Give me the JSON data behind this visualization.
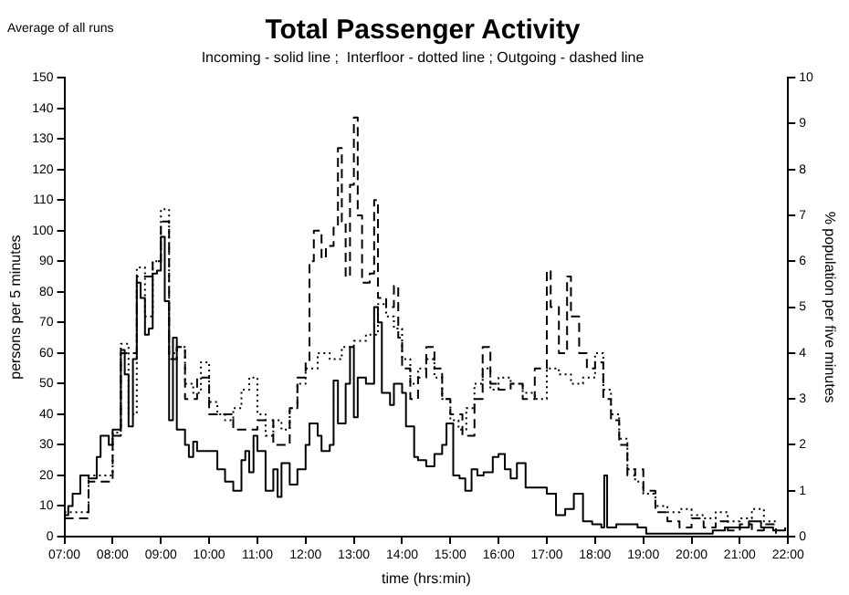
{
  "chart_data": {
    "type": "step",
    "title": "Total Passenger Activity",
    "subtitle": "Incoming - solid line ;  Interfloor - dotted line ; Outgoing - dashed line",
    "xlabel": "time (hrs:min)",
    "ylabel": "persons per 5 minutes",
    "y2label": "% population per five minutes",
    "annotations": [
      "Average of all runs"
    ],
    "xlim": [
      7,
      22
    ],
    "xticks": [
      {
        "value": 7,
        "label": "07:00"
      },
      {
        "value": 8,
        "label": "08:00"
      },
      {
        "value": 9,
        "label": "09:00"
      },
      {
        "value": 10,
        "label": "10:00"
      },
      {
        "value": 11,
        "label": "11:00"
      },
      {
        "value": 12,
        "label": "12:00"
      },
      {
        "value": 13,
        "label": "13:00"
      },
      {
        "value": 14,
        "label": "14:00"
      },
      {
        "value": 15,
        "label": "15:00"
      },
      {
        "value": 16,
        "label": "16:00"
      },
      {
        "value": 17,
        "label": "17:00"
      },
      {
        "value": 18,
        "label": "18:00"
      },
      {
        "value": 19,
        "label": "19:00"
      },
      {
        "value": 20,
        "label": "20:00"
      },
      {
        "value": 21,
        "label": "21:00"
      },
      {
        "value": 22,
        "label": "22:00"
      }
    ],
    "ylim": [
      0,
      150
    ],
    "yticks": [
      0,
      10,
      20,
      30,
      40,
      50,
      60,
      70,
      80,
      90,
      100,
      110,
      120,
      130,
      140,
      150
    ],
    "y2lim": [
      0,
      10
    ],
    "y2ticks": [
      0,
      1,
      2,
      3,
      4,
      5,
      6,
      7,
      8,
      9,
      10
    ],
    "grid": false,
    "legend": false,
    "marker": "none",
    "series": [
      {
        "color": "#000000",
        "line_style": "solid",
        "x": [
          7.0,
          7.08,
          7.17,
          7.33,
          7.5,
          7.67,
          7.75,
          7.92,
          8.0,
          8.17,
          8.25,
          8.33,
          8.42,
          8.5,
          8.58,
          8.67,
          8.75,
          8.83,
          8.92,
          9.0,
          9.08,
          9.17,
          9.25,
          9.33,
          9.5,
          9.58,
          9.67,
          9.75,
          10.0,
          10.17,
          10.33,
          10.5,
          10.67,
          10.75,
          10.83,
          10.92,
          11.0,
          11.17,
          11.33,
          11.42,
          11.5,
          11.67,
          11.83,
          12.0,
          12.08,
          12.25,
          12.33,
          12.5,
          12.58,
          12.67,
          12.83,
          12.92,
          13.0,
          13.08,
          13.25,
          13.42,
          13.5,
          13.58,
          13.75,
          13.83,
          14.0,
          14.08,
          14.25,
          14.33,
          14.5,
          14.67,
          14.83,
          14.92,
          15.06,
          15.19,
          15.31,
          15.44,
          15.56,
          15.69,
          15.88,
          16.0,
          16.13,
          16.25,
          16.38,
          16.56,
          16.81,
          17.0,
          17.19,
          17.38,
          17.56,
          17.75,
          17.94,
          18.13,
          18.19,
          18.25,
          18.44,
          18.69,
          18.88,
          19.06,
          19.44,
          20.0,
          20.44,
          20.69,
          20.94,
          21.19,
          21.44,
          21.69,
          21.94
        ],
        "values": [
          7,
          10,
          14,
          20,
          19,
          26,
          33,
          30,
          35,
          61,
          53,
          36,
          58,
          83,
          78,
          66,
          68,
          86,
          87,
          98,
          77,
          38,
          65,
          35,
          30,
          26,
          31,
          28,
          28,
          22,
          18,
          15,
          25,
          28,
          21,
          33,
          28,
          15,
          22,
          13,
          24,
          17,
          22,
          30,
          37,
          33,
          28,
          30,
          51,
          37,
          50,
          62,
          39,
          52,
          50,
          75,
          70,
          47,
          43,
          50,
          47,
          36,
          26,
          25,
          23,
          27,
          30,
          37,
          20,
          19,
          15,
          22,
          20,
          21,
          26,
          27,
          22,
          19,
          24,
          16,
          16,
          14,
          7,
          9,
          14,
          5,
          4,
          3,
          20,
          3,
          4,
          4,
          3,
          1,
          1,
          1,
          2,
          3,
          3,
          5,
          3,
          2,
          3
        ]
      },
      {
        "color": "#000000",
        "line_style": "dotted",
        "x": [
          7.0,
          7.5,
          8.0,
          8.17,
          8.33,
          8.5,
          8.67,
          8.83,
          9.0,
          9.17,
          9.33,
          9.5,
          9.67,
          9.83,
          10.0,
          10.17,
          10.33,
          10.5,
          10.67,
          10.83,
          11.0,
          11.17,
          11.33,
          11.5,
          11.67,
          11.83,
          12.0,
          12.25,
          12.5,
          12.75,
          13.0,
          13.25,
          13.5,
          13.67,
          13.83,
          14.0,
          14.17,
          14.33,
          14.5,
          14.67,
          14.83,
          15.0,
          15.17,
          15.33,
          15.5,
          15.67,
          15.83,
          16.0,
          16.25,
          16.5,
          16.75,
          17.0,
          17.25,
          17.5,
          17.75,
          18.0,
          18.17,
          18.33,
          18.5,
          18.67,
          18.83,
          19.0,
          19.25,
          19.5,
          19.75,
          20.0,
          20.25,
          20.5,
          20.75,
          21.0,
          21.25,
          21.5,
          21.75
        ],
        "values": [
          8,
          20,
          34,
          63,
          40,
          88,
          72,
          90,
          107,
          60,
          62,
          50,
          47,
          57,
          44,
          40,
          38,
          42,
          48,
          52,
          40,
          33,
          38,
          35,
          42,
          50,
          55,
          60,
          58,
          62,
          64,
          66,
          76,
          72,
          68,
          58,
          50,
          55,
          58,
          52,
          45,
          38,
          35,
          42,
          50,
          55,
          48,
          52,
          50,
          47,
          45,
          55,
          53,
          50,
          52,
          60,
          48,
          40,
          32,
          22,
          18,
          14,
          10,
          8,
          9,
          7,
          6,
          8,
          5,
          6,
          9,
          5,
          4
        ]
      },
      {
        "color": "#000000",
        "line_style": "dashed",
        "x": [
          7.0,
          7.5,
          8.0,
          8.17,
          8.5,
          8.83,
          9.0,
          9.17,
          9.33,
          9.5,
          9.75,
          10.0,
          10.5,
          11.0,
          11.33,
          11.67,
          11.83,
          12.0,
          12.08,
          12.17,
          12.33,
          12.42,
          12.58,
          12.67,
          12.75,
          12.83,
          12.92,
          13.0,
          13.08,
          13.17,
          13.33,
          13.42,
          13.5,
          13.67,
          13.83,
          13.92,
          14.0,
          14.17,
          14.33,
          14.5,
          14.67,
          14.83,
          15.0,
          15.25,
          15.5,
          15.67,
          15.83,
          16.0,
          16.25,
          16.5,
          16.75,
          17.0,
          17.08,
          17.25,
          17.42,
          17.5,
          17.67,
          17.83,
          18.0,
          18.17,
          18.33,
          18.5,
          18.67,
          18.83,
          19.0,
          19.25,
          19.5,
          19.75,
          20.0,
          20.25,
          20.5,
          20.75,
          21.0,
          21.25,
          21.5,
          21.75
        ],
        "values": [
          6,
          18,
          33,
          60,
          85,
          90,
          103,
          58,
          62,
          45,
          52,
          40,
          35,
          38,
          30,
          42,
          52,
          57,
          90,
          100,
          91,
          95,
          101,
          127,
          103,
          85,
          115,
          137,
          105,
          83,
          86,
          110,
          78,
          75,
          82,
          65,
          55,
          45,
          52,
          62,
          55,
          45,
          40,
          33,
          45,
          62,
          50,
          48,
          50,
          45,
          55,
          87,
          75,
          60,
          85,
          72,
          60,
          55,
          57,
          45,
          38,
          30,
          20,
          22,
          15,
          8,
          5,
          3,
          6,
          3,
          5,
          2,
          4,
          2,
          4,
          1
        ]
      }
    ]
  }
}
